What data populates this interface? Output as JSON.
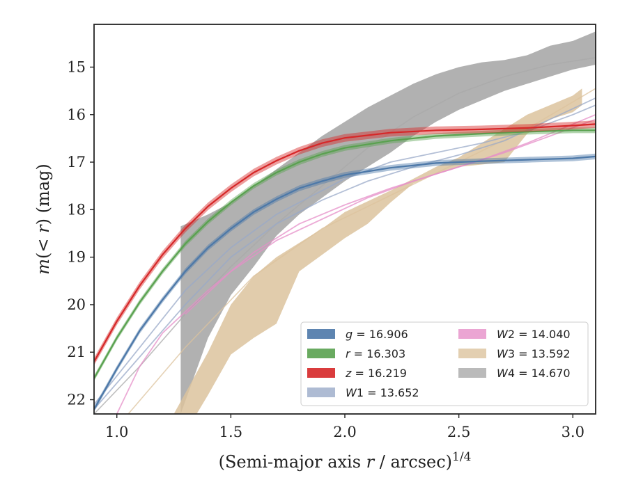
{
  "chart_data": {
    "type": "line",
    "xlabel": "(Semi-major axis r / arcsec)",
    "xlabel_main": "(Semi-major axis ",
    "xlabel_var": "r",
    "xlabel_rest": " / arcsec)",
    "xlabel_sup": "1/4",
    "ylabel_m": "m",
    "ylabel_paren": "(< ",
    "ylabel_r": "r",
    "ylabel_close": ")",
    "ylabel_unit": " (mag)",
    "xlim": [
      0.9,
      3.1
    ],
    "ylim": [
      22.3,
      14.1
    ],
    "y_inverted": true,
    "x_ticks": [
      1.0,
      1.5,
      2.0,
      2.5,
      3.0
    ],
    "x_tick_labels": [
      "1.0",
      "1.5",
      "2.0",
      "2.5",
      "3.0"
    ],
    "y_ticks": [
      15,
      16,
      17,
      18,
      19,
      20,
      21,
      22
    ],
    "y_tick_labels": [
      "15",
      "16",
      "17",
      "18",
      "19",
      "20",
      "21",
      "22"
    ],
    "grid": false,
    "legend_position": "lower-right",
    "series": [
      {
        "name": "g = 16.906",
        "var": "g",
        "value": "16.906",
        "color": "#4c78a8",
        "kind": "curve_band",
        "curve": [
          [
            0.9,
            22.2
          ],
          [
            1.0,
            21.35
          ],
          [
            1.1,
            20.55
          ],
          [
            1.2,
            19.9
          ],
          [
            1.3,
            19.3
          ],
          [
            1.4,
            18.8
          ],
          [
            1.5,
            18.4
          ],
          [
            1.6,
            18.05
          ],
          [
            1.7,
            17.78
          ],
          [
            1.8,
            17.55
          ],
          [
            1.9,
            17.4
          ],
          [
            2.0,
            17.27
          ],
          [
            2.2,
            17.12
          ],
          [
            2.4,
            17.02
          ],
          [
            2.6,
            16.98
          ],
          [
            2.8,
            16.95
          ],
          [
            3.0,
            16.92
          ],
          [
            3.1,
            16.88
          ]
        ],
        "band_width": 0.06
      },
      {
        "name": "r = 16.303",
        "var": "r",
        "value": "16.303",
        "color": "#59a14f",
        "kind": "curve_band",
        "curve": [
          [
            0.9,
            21.55
          ],
          [
            1.0,
            20.7
          ],
          [
            1.1,
            19.95
          ],
          [
            1.2,
            19.3
          ],
          [
            1.3,
            18.72
          ],
          [
            1.4,
            18.25
          ],
          [
            1.5,
            17.85
          ],
          [
            1.6,
            17.5
          ],
          [
            1.7,
            17.22
          ],
          [
            1.8,
            17.0
          ],
          [
            1.9,
            16.83
          ],
          [
            2.0,
            16.7
          ],
          [
            2.2,
            16.55
          ],
          [
            2.4,
            16.45
          ],
          [
            2.6,
            16.4
          ],
          [
            2.8,
            16.36
          ],
          [
            3.0,
            16.33
          ],
          [
            3.1,
            16.33
          ]
        ],
        "band_width": 0.06
      },
      {
        "name": "z = 16.219",
        "var": "z",
        "value": "16.219",
        "color": "#d62728",
        "kind": "curve_band",
        "curve": [
          [
            0.9,
            21.2
          ],
          [
            1.0,
            20.35
          ],
          [
            1.1,
            19.6
          ],
          [
            1.2,
            18.95
          ],
          [
            1.3,
            18.4
          ],
          [
            1.4,
            17.93
          ],
          [
            1.5,
            17.55
          ],
          [
            1.6,
            17.22
          ],
          [
            1.7,
            16.97
          ],
          [
            1.8,
            16.76
          ],
          [
            1.9,
            16.6
          ],
          [
            2.0,
            16.49
          ],
          [
            2.2,
            16.38
          ],
          [
            2.4,
            16.33
          ],
          [
            2.6,
            16.31
          ],
          [
            2.8,
            16.28
          ],
          [
            3.0,
            16.23
          ],
          [
            3.1,
            16.2
          ]
        ],
        "band_width": 0.08
      },
      {
        "name": "W1 = 13.652",
        "var": "W1",
        "value": "13.652",
        "color": "#9aaac8",
        "kind": "lines",
        "lines": [
          [
            [
              0.9,
              22.1
            ],
            [
              1.1,
              20.9
            ],
            [
              1.3,
              19.7
            ],
            [
              1.5,
              18.8
            ],
            [
              1.7,
              18.1
            ],
            [
              1.9,
              17.6
            ],
            [
              2.0,
              17.35
            ],
            [
              2.2,
              17.0
            ],
            [
              2.4,
              16.8
            ],
            [
              2.6,
              16.6
            ],
            [
              2.8,
              16.35
            ],
            [
              3.0,
              16.0
            ],
            [
              3.1,
              15.8
            ]
          ],
          [
            [
              0.9,
              22.2
            ],
            [
              1.1,
              21.1
            ],
            [
              1.3,
              20.0
            ],
            [
              1.5,
              19.0
            ],
            [
              1.7,
              18.3
            ],
            [
              1.9,
              17.8
            ],
            [
              2.1,
              17.4
            ],
            [
              2.3,
              17.1
            ],
            [
              2.5,
              16.85
            ],
            [
              2.7,
              16.55
            ],
            [
              2.9,
              16.1
            ],
            [
              3.1,
              15.65
            ]
          ]
        ]
      },
      {
        "name": "W2 = 14.040",
        "var": "W2",
        "value": "14.040",
        "color": "#e68fc8",
        "kind": "lines",
        "lines": [
          [
            [
              1.0,
              22.3
            ],
            [
              1.1,
              21.3
            ],
            [
              1.2,
              20.6
            ],
            [
              1.4,
              19.7
            ],
            [
              1.6,
              18.9
            ],
            [
              1.8,
              18.3
            ],
            [
              2.0,
              17.9
            ],
            [
              2.2,
              17.55
            ],
            [
              2.4,
              17.25
            ],
            [
              2.6,
              16.95
            ],
            [
              2.8,
              16.6
            ],
            [
              3.0,
              16.2
            ],
            [
              3.1,
              16.0
            ]
          ],
          [
            [
              1.3,
              20.2
            ],
            [
              1.5,
              19.3
            ],
            [
              1.7,
              18.65
            ],
            [
              1.9,
              18.2
            ],
            [
              2.1,
              17.75
            ],
            [
              2.3,
              17.4
            ],
            [
              2.5,
              17.1
            ],
            [
              2.7,
              16.8
            ],
            [
              2.9,
              16.45
            ],
            [
              3.1,
              16.1
            ]
          ]
        ]
      },
      {
        "name": "W3 = 13.592",
        "var": "W3",
        "value": "13.592",
        "color": "#dcc39e",
        "kind": "band",
        "upper": [
          [
            1.25,
            22.3
          ],
          [
            1.4,
            21.0
          ],
          [
            1.5,
            20.0
          ],
          [
            1.6,
            19.4
          ],
          [
            1.7,
            19.0
          ],
          [
            1.8,
            18.7
          ],
          [
            1.9,
            18.4
          ],
          [
            2.0,
            18.05
          ],
          [
            2.2,
            17.6
          ],
          [
            2.3,
            17.35
          ],
          [
            2.4,
            17.1
          ],
          [
            2.5,
            16.9
          ],
          [
            2.6,
            16.6
          ],
          [
            2.7,
            16.3
          ],
          [
            2.8,
            16.0
          ],
          [
            2.9,
            15.8
          ],
          [
            3.0,
            15.6
          ],
          [
            3.04,
            15.45
          ]
        ],
        "lower": [
          [
            3.04,
            15.8
          ],
          [
            3.0,
            15.95
          ],
          [
            2.9,
            16.1
          ],
          [
            2.8,
            16.4
          ],
          [
            2.7,
            17.0
          ],
          [
            2.6,
            17.05
          ],
          [
            2.5,
            17.1
          ],
          [
            2.4,
            17.25
          ],
          [
            2.3,
            17.45
          ],
          [
            2.2,
            17.85
          ],
          [
            2.1,
            18.3
          ],
          [
            2.0,
            18.6
          ],
          [
            1.9,
            18.95
          ],
          [
            1.8,
            19.3
          ],
          [
            1.7,
            20.4
          ],
          [
            1.6,
            20.7
          ],
          [
            1.5,
            21.05
          ],
          [
            1.4,
            21.9
          ],
          [
            1.35,
            22.3
          ]
        ],
        "lines": [
          [
            [
              1.05,
              22.3
            ],
            [
              1.3,
              20.9
            ],
            [
              1.6,
              19.4
            ],
            [
              1.9,
              18.4
            ],
            [
              2.2,
              17.7
            ],
            [
              2.5,
              17.0
            ],
            [
              2.8,
              16.3
            ],
            [
              3.1,
              15.45
            ]
          ]
        ]
      },
      {
        "name": "W4 = 14.670",
        "var": "W4",
        "value": "14.670",
        "color": "#a9a9a9",
        "kind": "band",
        "upper": [
          [
            1.28,
            18.35
          ],
          [
            1.4,
            18.1
          ],
          [
            1.5,
            17.85
          ],
          [
            1.6,
            17.5
          ],
          [
            1.7,
            17.15
          ],
          [
            1.8,
            16.8
          ],
          [
            1.9,
            16.45
          ],
          [
            2.0,
            16.15
          ],
          [
            2.1,
            15.85
          ],
          [
            2.2,
            15.6
          ],
          [
            2.3,
            15.35
          ],
          [
            2.4,
            15.15
          ],
          [
            2.5,
            15.0
          ],
          [
            2.6,
            14.9
          ],
          [
            2.7,
            14.85
          ],
          [
            2.8,
            14.75
          ],
          [
            2.9,
            14.55
          ],
          [
            3.0,
            14.45
          ],
          [
            3.1,
            14.25
          ]
        ],
        "lower": [
          [
            3.1,
            14.95
          ],
          [
            3.0,
            15.05
          ],
          [
            2.9,
            15.2
          ],
          [
            2.8,
            15.35
          ],
          [
            2.7,
            15.5
          ],
          [
            2.6,
            15.7
          ],
          [
            2.5,
            15.9
          ],
          [
            2.4,
            16.15
          ],
          [
            2.3,
            16.45
          ],
          [
            2.2,
            16.8
          ],
          [
            2.1,
            17.1
          ],
          [
            2.0,
            17.4
          ],
          [
            1.9,
            17.75
          ],
          [
            1.8,
            18.1
          ],
          [
            1.7,
            18.55
          ],
          [
            1.6,
            19.2
          ],
          [
            1.5,
            19.8
          ],
          [
            1.4,
            20.7
          ],
          [
            1.28,
            22.3
          ]
        ],
        "lines": [
          [
            [
              0.9,
              22.3
            ],
            [
              1.1,
              21.3
            ],
            [
              1.3,
              20.2
            ],
            [
              1.5,
              19.2
            ],
            [
              1.7,
              18.3
            ],
            [
              1.9,
              17.5
            ],
            [
              2.1,
              16.7
            ],
            [
              2.3,
              16.05
            ],
            [
              2.5,
              15.55
            ],
            [
              2.7,
              15.2
            ],
            [
              2.9,
              14.95
            ],
            [
              3.1,
              14.8
            ]
          ]
        ]
      }
    ]
  }
}
